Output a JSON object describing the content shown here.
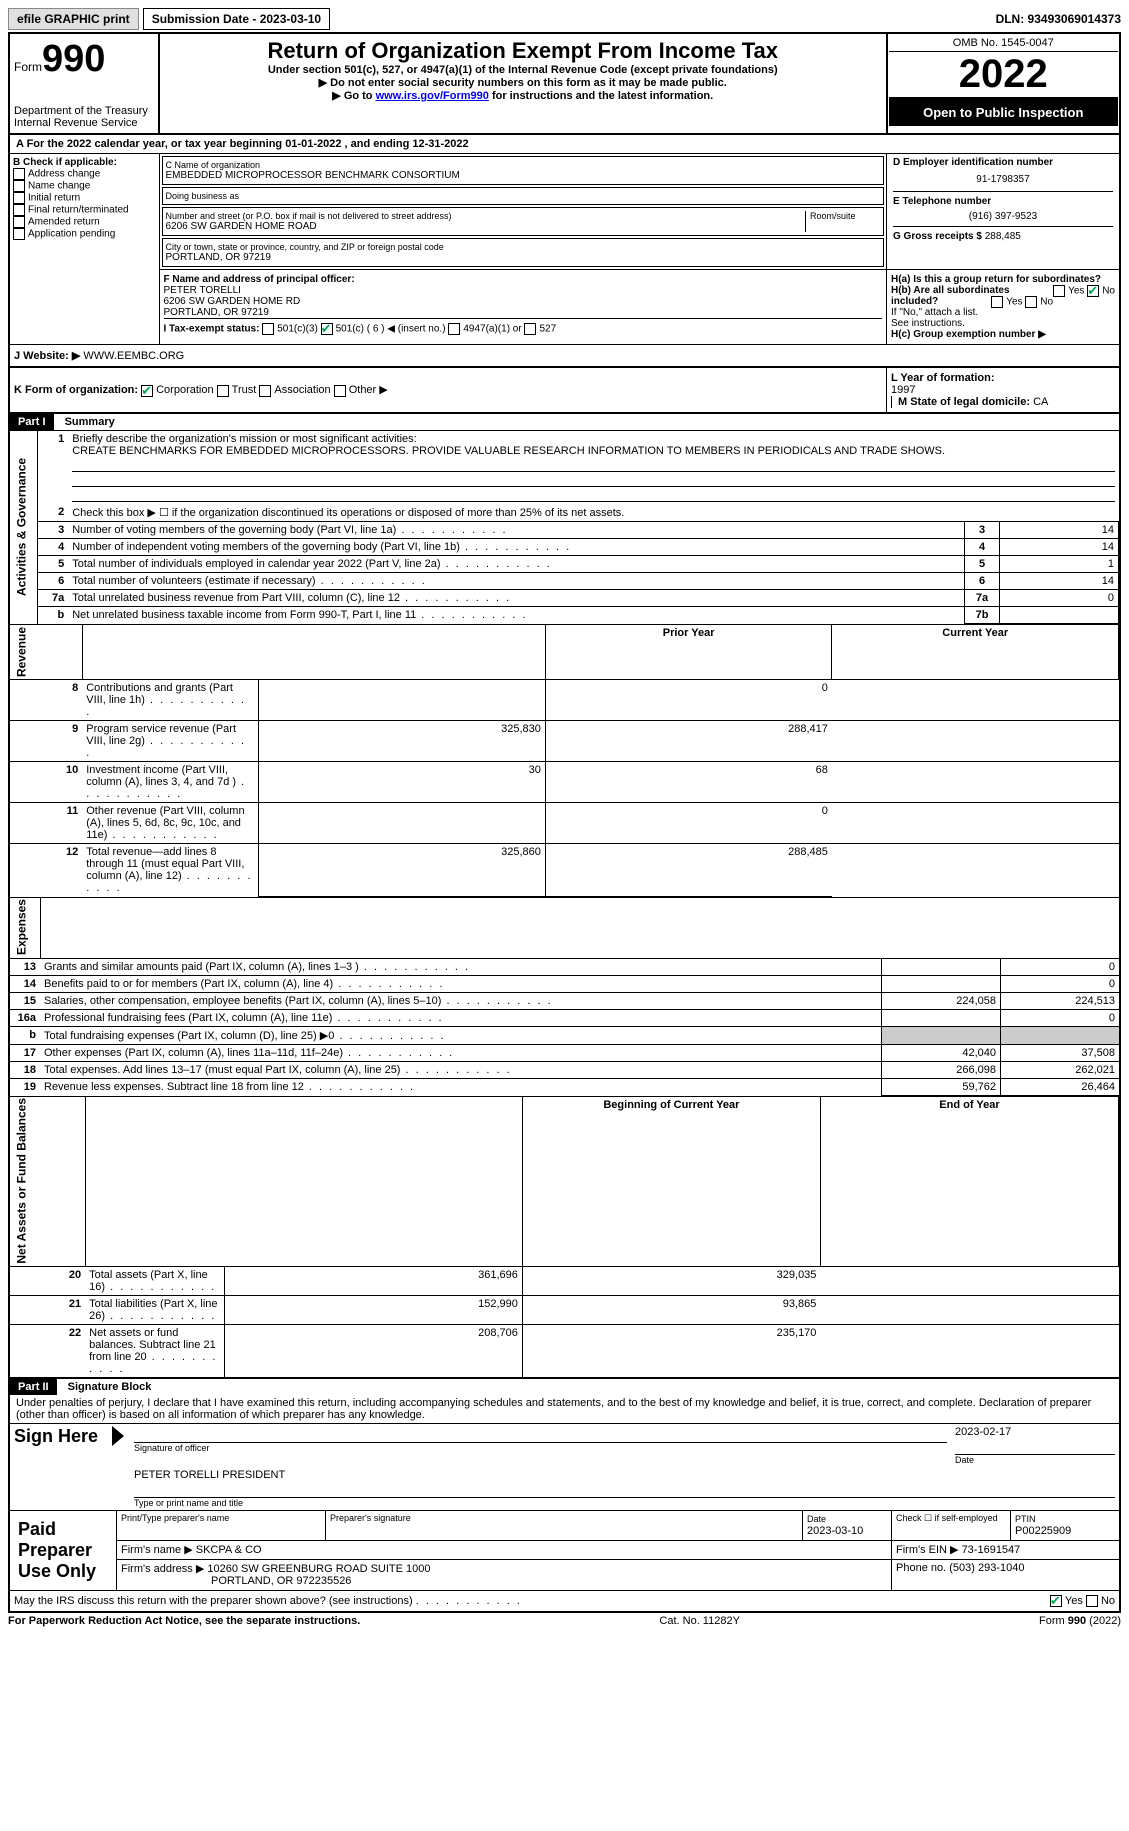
{
  "topbar": {
    "efile": "efile GRAPHIC print",
    "submission": "Submission Date - 2023-03-10",
    "dln": "DLN: 93493069014373"
  },
  "header": {
    "form_word": "Form",
    "form_num": "990",
    "dept1": "Department of the Treasury",
    "dept2": "Internal Revenue Service",
    "title": "Return of Organization Exempt From Income Tax",
    "subtitle": "Under section 501(c), 527, or 4947(a)(1) of the Internal Revenue Code (except private foundations)",
    "line1": "▶ Do not enter social security numbers on this form as it may be made public.",
    "line2_pre": "▶ Go to ",
    "line2_link": "www.irs.gov/Form990",
    "line2_post": " for instructions and the latest information.",
    "omb": "OMB No. 1545-0047",
    "year": "2022",
    "open": "Open to Public Inspection"
  },
  "a": {
    "text": "A For the 2022 calendar year, or tax year beginning 01-01-2022    , and ending 12-31-2022"
  },
  "b": {
    "label": "B Check if applicable:",
    "opts": [
      "Address change",
      "Name change",
      "Initial return",
      "Final return/terminated",
      "Amended return",
      "Application pending"
    ]
  },
  "c": {
    "name_label": "C Name of organization",
    "name": "EMBEDDED MICROPROCESSOR BENCHMARK CONSORTIUM",
    "dba_label": "Doing business as",
    "street_label": "Number and street (or P.O. box if mail is not delivered to street address)",
    "room_label": "Room/suite",
    "street": "6206 SW GARDEN HOME ROAD",
    "city_label": "City or town, state or province, country, and ZIP or foreign postal code",
    "city": "PORTLAND, OR  97219"
  },
  "d": {
    "label": "D Employer identification number",
    "val": "91-1798357"
  },
  "e": {
    "label": "E Telephone number",
    "val": "(916) 397-9523"
  },
  "g": {
    "label": "G Gross receipts $",
    "val": "288,485"
  },
  "f": {
    "label": "F Name and address of principal officer:",
    "name": "PETER TORELLI",
    "addr1": "6206 SW GARDEN HOME RD",
    "addr2": "PORTLAND, OR  97219"
  },
  "h": {
    "a_label": "H(a)  Is this a group return for subordinates?",
    "b_label": "H(b)  Are all subordinates included?",
    "b_note": "If \"No,\" attach a list. See instructions.",
    "c_label": "H(c)  Group exemption number ▶",
    "yes": "Yes",
    "no": "No"
  },
  "i": {
    "label": "I   Tax-exempt status:",
    "o1": "501(c)(3)",
    "o2": "501(c) ( 6 ) ◀ (insert no.)",
    "o3": "4947(a)(1) or",
    "o4": "527"
  },
  "j": {
    "label": "J   Website: ▶",
    "val": "WWW.EEMBC.ORG"
  },
  "k": {
    "label": "K Form of organization:",
    "o1": "Corporation",
    "o2": "Trust",
    "o3": "Association",
    "o4": "Other ▶"
  },
  "l": {
    "label": "L Year of formation:",
    "val": "1997"
  },
  "m": {
    "label": "M State of legal domicile:",
    "val": "CA"
  },
  "parts": {
    "p1": "Part I",
    "p1t": "Summary",
    "p2": "Part II",
    "p2t": "Signature Block"
  },
  "vlabels": {
    "act": "Activities & Governance",
    "rev": "Revenue",
    "exp": "Expenses",
    "net": "Net Assets or Fund Balances"
  },
  "summary": {
    "l1_label": "Briefly describe the organization's mission or most significant activities:",
    "l1_text": "CREATE BENCHMARKS FOR EMBEDDED MICROPROCESSORS. PROVIDE VALUABLE RESEARCH INFORMATION TO MEMBERS IN PERIODICALS AND TRADE SHOWS.",
    "l2": "Check this box ▶ ☐ if the organization discontinued its operations or disposed of more than 25% of its net assets.",
    "rows_ag": [
      {
        "n": "3",
        "t": "Number of voting members of the governing body (Part VI, line 1a)",
        "b": "3",
        "v": "14"
      },
      {
        "n": "4",
        "t": "Number of independent voting members of the governing body (Part VI, line 1b)",
        "b": "4",
        "v": "14"
      },
      {
        "n": "5",
        "t": "Total number of individuals employed in calendar year 2022 (Part V, line 2a)",
        "b": "5",
        "v": "1"
      },
      {
        "n": "6",
        "t": "Total number of volunteers (estimate if necessary)",
        "b": "6",
        "v": "14"
      },
      {
        "n": "7a",
        "t": "Total unrelated business revenue from Part VIII, column (C), line 12",
        "b": "7a",
        "v": "0"
      },
      {
        "n": "b",
        "t": "Net unrelated business taxable income from Form 990-T, Part I, line 11",
        "b": "7b",
        "v": ""
      }
    ],
    "col_prior": "Prior Year",
    "col_curr": "Current Year",
    "rows_rev": [
      {
        "n": "8",
        "t": "Contributions and grants (Part VIII, line 1h)",
        "p": "",
        "c": "0"
      },
      {
        "n": "9",
        "t": "Program service revenue (Part VIII, line 2g)",
        "p": "325,830",
        "c": "288,417"
      },
      {
        "n": "10",
        "t": "Investment income (Part VIII, column (A), lines 3, 4, and 7d )",
        "p": "30",
        "c": "68"
      },
      {
        "n": "11",
        "t": "Other revenue (Part VIII, column (A), lines 5, 6d, 8c, 9c, 10c, and 11e)",
        "p": "",
        "c": "0"
      },
      {
        "n": "12",
        "t": "Total revenue—add lines 8 through 11 (must equal Part VIII, column (A), line 12)",
        "p": "325,860",
        "c": "288,485"
      }
    ],
    "rows_exp": [
      {
        "n": "13",
        "t": "Grants and similar amounts paid (Part IX, column (A), lines 1–3 )",
        "p": "",
        "c": "0"
      },
      {
        "n": "14",
        "t": "Benefits paid to or for members (Part IX, column (A), line 4)",
        "p": "",
        "c": "0"
      },
      {
        "n": "15",
        "t": "Salaries, other compensation, employee benefits (Part IX, column (A), lines 5–10)",
        "p": "224,058",
        "c": "224,513"
      },
      {
        "n": "16a",
        "t": "Professional fundraising fees (Part IX, column (A), line 11e)",
        "p": "",
        "c": "0"
      },
      {
        "n": "b",
        "t": "Total fundraising expenses (Part IX, column (D), line 25)  ▶0",
        "p": "gray",
        "c": "gray"
      },
      {
        "n": "17",
        "t": "Other expenses (Part IX, column (A), lines 11a–11d, 11f–24e)",
        "p": "42,040",
        "c": "37,508"
      },
      {
        "n": "18",
        "t": "Total expenses. Add lines 13–17 (must equal Part IX, column (A), line 25)",
        "p": "266,098",
        "c": "262,021"
      },
      {
        "n": "19",
        "t": "Revenue less expenses. Subtract line 18 from line 12",
        "p": "59,762",
        "c": "26,464"
      }
    ],
    "col_beg": "Beginning of Current Year",
    "col_end": "End of Year",
    "rows_net": [
      {
        "n": "20",
        "t": "Total assets (Part X, line 16)",
        "p": "361,696",
        "c": "329,035"
      },
      {
        "n": "21",
        "t": "Total liabilities (Part X, line 26)",
        "p": "152,990",
        "c": "93,865"
      },
      {
        "n": "22",
        "t": "Net assets or fund balances. Subtract line 21 from line 20",
        "p": "208,706",
        "c": "235,170"
      }
    ]
  },
  "sig": {
    "decl": "Under penalties of perjury, I declare that I have examined this return, including accompanying schedules and statements, and to the best of my knowledge and belief, it is true, correct, and complete. Declaration of preparer (other than officer) is based on all information of which preparer has any knowledge.",
    "sign_here": "Sign Here",
    "sig_officer": "Signature of officer",
    "date_lbl": "Date",
    "date_val": "2023-02-17",
    "name_title": "PETER TORELLI  PRESIDENT",
    "type_name": "Type or print name and title",
    "paid": "Paid Preparer Use Only",
    "prep_name_lbl": "Print/Type preparer's name",
    "prep_sig_lbl": "Preparer's signature",
    "prep_date_lbl": "Date",
    "prep_date": "2023-03-10",
    "check_self": "Check ☐ if self-employed",
    "ptin_lbl": "PTIN",
    "ptin": "P00225909",
    "firm_name_lbl": "Firm's name    ▶",
    "firm_name": "SKCPA & CO",
    "firm_ein_lbl": "Firm's EIN ▶",
    "firm_ein": "73-1691547",
    "firm_addr_lbl": "Firm's address ▶",
    "firm_addr1": "10260 SW GREENBURG ROAD SUITE 1000",
    "firm_addr2": "PORTLAND, OR  972235526",
    "phone_lbl": "Phone no.",
    "phone": "(503) 293-1040",
    "discuss": "May the IRS discuss this return with the preparer shown above? (see instructions)"
  },
  "footer": {
    "left": "For Paperwork Reduction Act Notice, see the separate instructions.",
    "mid": "Cat. No. 11282Y",
    "right": "Form 990 (2022)"
  }
}
